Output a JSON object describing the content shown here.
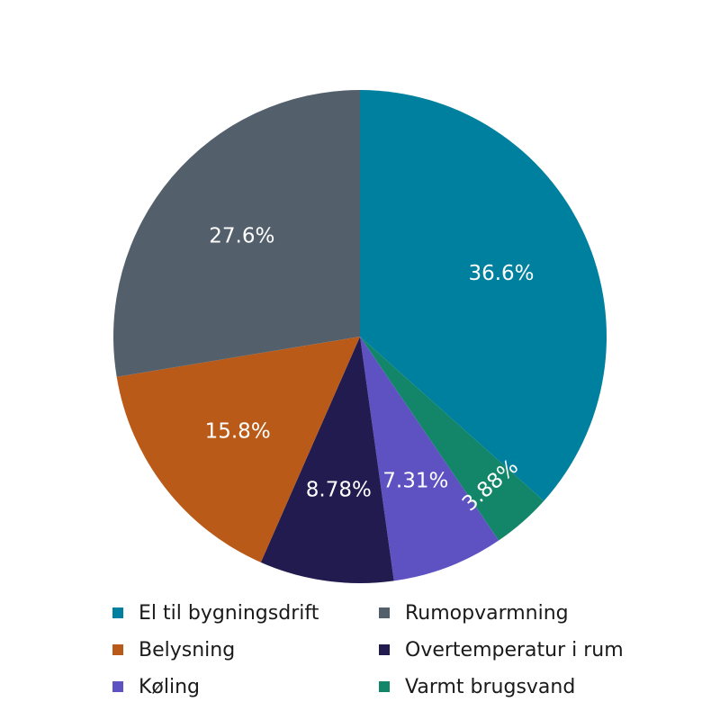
{
  "chart_data": {
    "type": "pie",
    "slices": [
      {
        "name": "El til bygningsdrift",
        "value": 36.6,
        "label": "36.6%",
        "color": "#00809F"
      },
      {
        "name": "Varmt brugsvand",
        "value": 3.88,
        "label": "3.88%",
        "color": "#13866A"
      },
      {
        "name": "Køling",
        "value": 7.31,
        "label": "7.31%",
        "color": "#5E52C2"
      },
      {
        "name": "Overtemperatur i rum",
        "value": 8.78,
        "label": "8.78%",
        "color": "#221B50"
      },
      {
        "name": "Belysning",
        "value": 15.8,
        "label": "15.8%",
        "color": "#B95A18"
      },
      {
        "name": "Rumopvarmning",
        "value": 27.6,
        "label": "27.6%",
        "color": "#53606C"
      }
    ],
    "legend": [
      {
        "label": "El til bygningsdrift",
        "color": "#00809F"
      },
      {
        "label": "Rumopvarmning",
        "color": "#53606C"
      },
      {
        "label": "Belysning",
        "color": "#B95A18"
      },
      {
        "label": "Overtemperatur i rum",
        "color": "#221B50"
      },
      {
        "label": "Køling",
        "color": "#5E52C2"
      },
      {
        "label": "Varmt brugsvand",
        "color": "#13866A"
      }
    ],
    "legend_position": "bottom",
    "start_angle": "12 o'clock, clockwise"
  }
}
